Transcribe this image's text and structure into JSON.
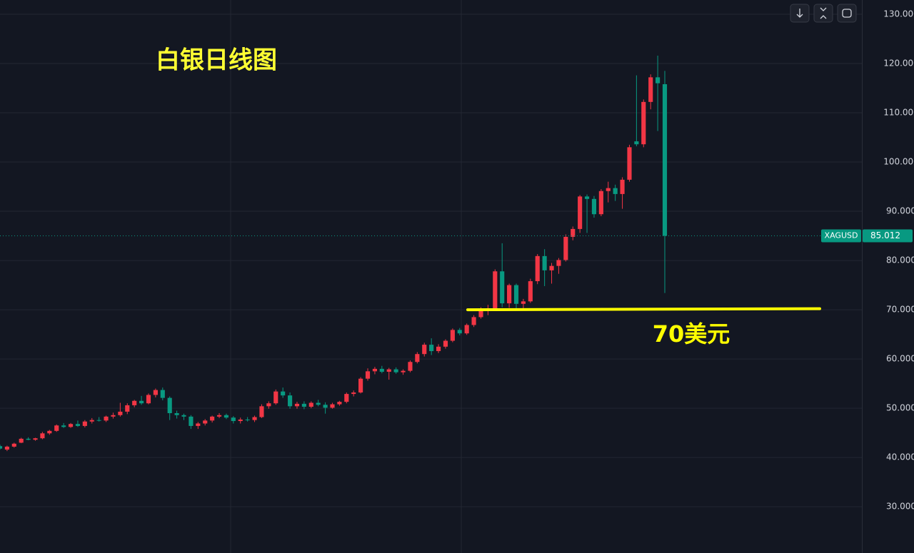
{
  "chart_data": {
    "type": "candlestick",
    "title": "白银日线图",
    "symbol": "XAGUSD",
    "last_price": 85.012,
    "up_color": "#f23645",
    "down_color": "#089981",
    "grid": true,
    "ylim": [
      20.6,
      132.9
    ],
    "yticks": [
      {
        "value": 30,
        "label": "30.000"
      },
      {
        "value": 40,
        "label": "40.000"
      },
      {
        "value": 50,
        "label": "50.000"
      },
      {
        "value": 60,
        "label": "60.000"
      },
      {
        "value": 70,
        "label": "70.000"
      },
      {
        "value": 80,
        "label": "80.000"
      },
      {
        "value": 90,
        "label": "90.000"
      },
      {
        "value": 100,
        "label": "100.000"
      },
      {
        "value": 110,
        "label": "110.000"
      },
      {
        "value": 120,
        "label": "120.000"
      },
      {
        "value": 130,
        "label": "130.000"
      }
    ],
    "support": {
      "value": 70,
      "label": "70美元",
      "color": "#ffff00"
    },
    "open": [
      42.3,
      41.6,
      42.2,
      43.0,
      43.8,
      43.6,
      43.9,
      44.9,
      45.4,
      46.5,
      46.2,
      46.8,
      46.4,
      47.3,
      47.6,
      47.5,
      48.3,
      48.6,
      49.3,
      50.6,
      51.5,
      51.0,
      52.7,
      53.7,
      52.1,
      49.0,
      48.6,
      48.3,
      46.4,
      46.9,
      47.5,
      48.3,
      48.6,
      48.1,
      47.4,
      47.7,
      47.6,
      48.2,
      50.4,
      51.0,
      53.4,
      52.6,
      50.4,
      50.9,
      50.3,
      51.1,
      50.7,
      50.1,
      50.8,
      51.3,
      52.9,
      53.2,
      56.0,
      57.5,
      58.0,
      57.4,
      57.9,
      57.3,
      57.6,
      59.4,
      61.0,
      62.9,
      61.6,
      62.5,
      63.7,
      65.9,
      65.2,
      66.9,
      68.5,
      70.0,
      70.3,
      77.8,
      71.3,
      75.0,
      71.2,
      71.7,
      75.8,
      80.9,
      78.0,
      78.9,
      80.1,
      84.8,
      86.4,
      93.0,
      92.5,
      89.4,
      94.1,
      94.7,
      93.5,
      96.4,
      104.2,
      103.6,
      112.2,
      117.2,
      115.8
    ],
    "high": [
      42.6,
      42.4,
      43.0,
      44.0,
      44.1,
      44.0,
      45.2,
      45.6,
      46.7,
      47.0,
      47.0,
      47.5,
      47.6,
      48.0,
      48.2,
      48.5,
      49.1,
      51.1,
      51.0,
      51.7,
      52.5,
      53.0,
      54.0,
      54.2,
      52.4,
      49.5,
      48.9,
      48.6,
      47.2,
      47.8,
      48.5,
      49.0,
      48.9,
      48.4,
      48.1,
      48.2,
      48.5,
      50.8,
      51.4,
      53.8,
      54.2,
      53.2,
      51.3,
      51.4,
      51.4,
      51.7,
      51.2,
      51.1,
      51.5,
      53.2,
      53.6,
      56.3,
      58.1,
      58.4,
      58.6,
      58.2,
      58.3,
      57.9,
      59.7,
      61.4,
      63.3,
      64.2,
      63.0,
      64.0,
      66.2,
      66.3,
      67.2,
      68.9,
      70.5,
      71.0,
      78.2,
      83.5,
      75.3,
      75.3,
      72.2,
      76.3,
      81.3,
      82.3,
      79.5,
      80.5,
      85.3,
      86.9,
      93.3,
      93.4,
      93.1,
      94.5,
      96.0,
      95.4,
      96.9,
      103.5,
      117.6,
      112.7,
      117.8,
      121.6,
      118.5
    ],
    "low": [
      41.6,
      41.3,
      42.0,
      42.9,
      43.5,
      43.4,
      43.7,
      44.6,
      45.2,
      46.0,
      46.0,
      46.2,
      46.1,
      46.9,
      47.3,
      47.2,
      47.9,
      48.3,
      48.8,
      50.2,
      50.7,
      50.8,
      52.2,
      51.6,
      47.6,
      47.9,
      47.6,
      45.8,
      45.8,
      46.5,
      47.1,
      48.0,
      47.8,
      46.9,
      46.9,
      47.3,
      47.2,
      48.0,
      49.9,
      50.7,
      52.1,
      49.9,
      49.9,
      49.8,
      50.0,
      50.4,
      48.9,
      49.9,
      50.5,
      51.0,
      52.4,
      53.0,
      55.6,
      56.9,
      57.1,
      55.8,
      57.0,
      56.8,
      57.3,
      59.1,
      60.5,
      60.8,
      61.2,
      62.1,
      63.4,
      64.8,
      64.9,
      66.5,
      68.2,
      68.9,
      69.8,
      70.5,
      70.4,
      70.1,
      70.3,
      71.4,
      75.2,
      74.8,
      75.3,
      77.3,
      79.8,
      84.1,
      85.6,
      85.6,
      88.7,
      89.0,
      91.8,
      92.1,
      90.5,
      96.0,
      103.2,
      103.0,
      110.7,
      106.3,
      73.4
    ],
    "close": [
      41.8,
      42.2,
      42.8,
      43.8,
      43.6,
      43.9,
      44.9,
      45.4,
      46.5,
      46.2,
      46.8,
      46.4,
      47.3,
      47.6,
      47.5,
      48.3,
      48.6,
      49.3,
      50.6,
      51.5,
      51.0,
      52.7,
      53.7,
      52.1,
      49.0,
      48.6,
      48.3,
      46.4,
      46.9,
      47.5,
      48.3,
      48.6,
      48.1,
      47.4,
      47.7,
      47.6,
      48.2,
      50.4,
      51.0,
      53.4,
      52.6,
      50.4,
      50.9,
      50.3,
      51.1,
      50.7,
      50.1,
      50.8,
      51.3,
      52.9,
      53.2,
      56.0,
      57.5,
      58.0,
      57.4,
      57.9,
      57.3,
      57.6,
      59.4,
      61.0,
      62.9,
      61.6,
      62.5,
      63.7,
      65.9,
      65.2,
      66.9,
      68.5,
      70.0,
      70.3,
      77.8,
      71.3,
      75.0,
      71.2,
      71.7,
      75.8,
      80.9,
      78.0,
      78.9,
      80.1,
      84.8,
      86.4,
      93.0,
      92.5,
      89.4,
      94.1,
      94.7,
      93.5,
      96.4,
      103.0,
      103.6,
      112.2,
      117.2,
      116.0,
      85.012
    ]
  }
}
